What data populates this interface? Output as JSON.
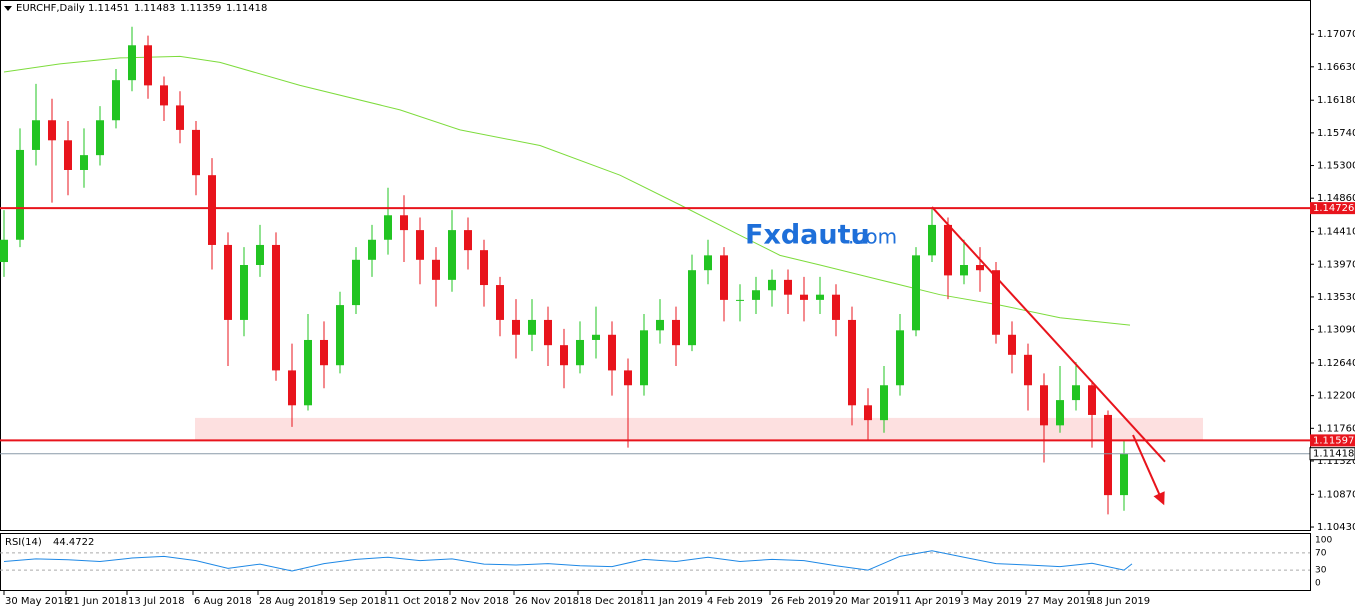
{
  "chart_data": {
    "type": "candlestick",
    "symbol": "EURCHF,Daily",
    "header_ohlc": [
      1.11451,
      1.11483,
      1.11359,
      1.11418
    ],
    "xlim": [
      -1,
      326.5
    ],
    "ylim": [
      1.1039,
      1.1753
    ],
    "xticks": [
      {
        "value": 0,
        "label": "30 May 2018"
      },
      {
        "value": 15.5,
        "label": "21 Jun 2018"
      },
      {
        "value": 30.75,
        "label": "13 Jul 2018"
      },
      {
        "value": 47.25,
        "label": "6 Aug 2018"
      },
      {
        "value": 63.5,
        "label": "28 Aug 2018"
      },
      {
        "value": 79.5,
        "label": "19 Sep 2018"
      },
      {
        "value": 95.5,
        "label": "11 Oct 2018"
      },
      {
        "value": 111.5,
        "label": "2 Nov 2018"
      },
      {
        "value": 127.5,
        "label": "26 Nov 2018"
      },
      {
        "value": 143.5,
        "label": "18 Dec 2018"
      },
      {
        "value": 159.5,
        "label": "11 Jan 2019"
      },
      {
        "value": 175.5,
        "label": "4 Feb 2019"
      },
      {
        "value": 191.5,
        "label": "26 Feb 2019"
      },
      {
        "value": 207.5,
        "label": "20 Mar 2019"
      },
      {
        "value": 223.5,
        "label": "11 Apr 2019"
      },
      {
        "value": 239.5,
        "label": "3 May 2019"
      },
      {
        "value": 255.5,
        "label": "27 May 2019"
      },
      {
        "value": 271.25,
        "label": "18 Jun 2019"
      }
    ],
    "yticks": [
      {
        "value": 1.1707,
        "label": "1.17070"
      },
      {
        "value": 1.1663,
        "label": "1.16630"
      },
      {
        "value": 1.1618,
        "label": "1.16180"
      },
      {
        "value": 1.1574,
        "label": "1.15740"
      },
      {
        "value": 1.153,
        "label": "1.15300"
      },
      {
        "value": 1.1486,
        "label": "1.14860"
      },
      {
        "value": 1.1441,
        "label": "1.14410"
      },
      {
        "value": 1.1397,
        "label": "1.13970"
      },
      {
        "value": 1.1353,
        "label": "1.13530"
      },
      {
        "value": 1.1309,
        "label": "1.13090"
      },
      {
        "value": 1.1264,
        "label": "1.12640"
      },
      {
        "value": 1.122,
        "label": "1.12200"
      },
      {
        "value": 1.1176,
        "label": "1.11760"
      },
      {
        "value": 1.1132,
        "label": "1.11320"
      },
      {
        "value": 1.1087,
        "label": "1.10870"
      },
      {
        "value": 1.1043,
        "label": "1.10430"
      }
    ],
    "up_color": "#22c422",
    "down_color": "#e8141c",
    "candles": {
      "x": [
        0,
        4,
        8,
        12,
        16,
        20,
        24,
        28,
        32,
        36,
        40,
        44,
        48,
        52,
        56,
        60,
        64,
        68,
        72,
        76,
        80,
        84,
        88,
        92,
        96,
        100,
        104,
        108,
        112,
        116,
        120,
        124,
        128,
        132,
        136,
        140,
        144,
        148,
        152,
        156,
        160,
        164,
        168,
        172,
        176,
        180,
        184,
        188,
        192,
        196,
        200,
        204,
        208,
        212,
        216,
        220,
        224,
        228,
        232,
        236,
        240,
        244,
        248,
        252,
        256,
        260,
        264,
        268,
        272,
        276,
        280
      ],
      "open": [
        1.14,
        1.143,
        1.1551,
        1.1591,
        1.1564,
        1.1524,
        1.1544,
        1.1591,
        1.1645,
        1.1692,
        1.1638,
        1.1611,
        1.1578,
        1.1517,
        1.1423,
        1.1322,
        1.1396,
        1.1423,
        1.1254,
        1.1207,
        1.1295,
        1.1261,
        1.1342,
        1.1403,
        1.143,
        1.1463,
        1.1443,
        1.1403,
        1.1376,
        1.1443,
        1.1416,
        1.1369,
        1.1322,
        1.1302,
        1.1322,
        1.1288,
        1.1261,
        1.1295,
        1.1302,
        1.1254,
        1.1234,
        1.1308,
        1.1322,
        1.1288,
        1.1389,
        1.1409,
        1.1349,
        1.1349,
        1.1362,
        1.1376,
        1.1356,
        1.1349,
        1.1356,
        1.1322,
        1.1207,
        1.1187,
        1.1234,
        1.1308,
        1.1409,
        1.145,
        1.1382,
        1.1396,
        1.1389,
        1.1302,
        1.1275,
        1.1234,
        1.118,
        1.1214,
        1.1234,
        1.1194,
        1.1086
      ],
      "high": [
        1.147,
        1.158,
        1.164,
        1.162,
        1.159,
        1.158,
        1.161,
        1.166,
        1.1717,
        1.1705,
        1.165,
        1.163,
        1.159,
        1.154,
        1.144,
        1.142,
        1.145,
        1.144,
        1.129,
        1.133,
        1.132,
        1.136,
        1.142,
        1.145,
        1.15,
        1.149,
        1.146,
        1.142,
        1.147,
        1.146,
        1.143,
        1.138,
        1.135,
        1.135,
        1.134,
        1.131,
        1.132,
        1.134,
        1.132,
        1.127,
        1.133,
        1.135,
        1.134,
        1.141,
        1.143,
        1.142,
        1.137,
        1.138,
        1.139,
        1.139,
        1.138,
        1.138,
        1.137,
        1.134,
        1.123,
        1.126,
        1.133,
        1.142,
        1.1473,
        1.146,
        1.143,
        1.142,
        1.14,
        1.132,
        1.129,
        1.125,
        1.126,
        1.1265,
        1.124,
        1.12,
        1.116
      ],
      "low": [
        1.138,
        1.142,
        1.153,
        1.148,
        1.149,
        1.15,
        1.153,
        1.158,
        1.163,
        1.162,
        1.159,
        1.156,
        1.149,
        1.139,
        1.126,
        1.13,
        1.138,
        1.124,
        1.1178,
        1.12,
        1.123,
        1.125,
        1.133,
        1.138,
        1.141,
        1.14,
        1.137,
        1.134,
        1.136,
        1.139,
        1.134,
        1.13,
        1.127,
        1.128,
        1.126,
        1.123,
        1.125,
        1.127,
        1.122,
        1.115,
        1.122,
        1.129,
        1.126,
        1.128,
        1.137,
        1.132,
        1.132,
        1.133,
        1.134,
        1.133,
        1.132,
        1.133,
        1.13,
        1.118,
        1.116,
        1.117,
        1.122,
        1.13,
        1.14,
        1.135,
        1.137,
        1.136,
        1.129,
        1.125,
        1.12,
        1.113,
        1.117,
        1.12,
        1.115,
        1.106,
        1.1065
      ],
      "close": [
        1.143,
        1.1551,
        1.1591,
        1.1564,
        1.1524,
        1.1544,
        1.1591,
        1.1645,
        1.1692,
        1.1638,
        1.1611,
        1.1578,
        1.1517,
        1.1423,
        1.1322,
        1.1396,
        1.1423,
        1.1254,
        1.1207,
        1.1295,
        1.1261,
        1.1342,
        1.1403,
        1.143,
        1.1463,
        1.1443,
        1.1403,
        1.1376,
        1.1443,
        1.1416,
        1.1369,
        1.1322,
        1.1302,
        1.1322,
        1.1288,
        1.1261,
        1.1295,
        1.1302,
        1.1254,
        1.1234,
        1.1308,
        1.1322,
        1.1288,
        1.1389,
        1.1409,
        1.1349,
        1.1349,
        1.1362,
        1.1376,
        1.1356,
        1.1349,
        1.1356,
        1.1322,
        1.1207,
        1.1187,
        1.1234,
        1.1308,
        1.1409,
        1.145,
        1.1382,
        1.1396,
        1.1389,
        1.1302,
        1.1275,
        1.1234,
        1.118,
        1.1214,
        1.1234,
        1.1194,
        1.1086,
        1.1142
      ]
    },
    "moving_average": {
      "color": "#7ddc3c",
      "x": [
        0,
        14,
        29,
        44,
        54,
        74,
        99,
        114,
        134,
        154,
        169,
        184,
        194,
        204,
        219,
        234,
        249,
        264,
        281.5
      ],
      "values": [
        1.1656,
        1.1667,
        1.1675,
        1.1677,
        1.1669,
        1.1638,
        1.1605,
        1.1578,
        1.1557,
        1.1517,
        1.1477,
        1.1436,
        1.1409,
        1.1396,
        1.1376,
        1.1356,
        1.1342,
        1.1325,
        1.1315
      ]
    },
    "levels": [
      {
        "value": 1.14726,
        "color": "#e8141c"
      },
      {
        "value": 1.11597,
        "color": "#e8141c"
      }
    ],
    "current_price": 1.11418,
    "zone": {
      "x": [
        47.75,
        299.75
      ],
      "y": [
        1.116,
        1.119
      ],
      "color": "#fde0e0"
    },
    "trendline": {
      "x": [
        232,
        290.25
      ],
      "y": [
        1.1474,
        1.1131
      ],
      "color": "#e8141c"
    },
    "arrow": {
      "x": [
        282.25,
        289.75
      ],
      "y": [
        1.1167,
        1.1076
      ],
      "color": "#e8141c"
    },
    "watermark": [
      "Fxdautu",
      ".com"
    ],
    "rsi": {
      "label": "RSI(14)",
      "current": 44.4722,
      "color": "#1e88e5",
      "ylim": [
        0,
        100
      ],
      "yticks": [
        0,
        30,
        70,
        100
      ],
      "x": [
        0,
        8,
        16,
        24,
        32,
        40,
        48,
        56,
        64,
        72,
        80,
        88,
        96,
        104,
        112,
        120,
        128,
        136,
        144,
        152,
        160,
        168,
        176,
        184,
        192,
        200,
        208,
        216,
        224,
        232,
        240,
        248,
        256,
        264,
        272,
        280,
        282
      ],
      "values": [
        50,
        56,
        54,
        50,
        58,
        62,
        52,
        34,
        44,
        28,
        45,
        55,
        60,
        52,
        56,
        44,
        42,
        45,
        40,
        38,
        55,
        50,
        60,
        50,
        55,
        52,
        40,
        30,
        62,
        75,
        60,
        45,
        42,
        38,
        46,
        30,
        44.4722
      ]
    }
  }
}
